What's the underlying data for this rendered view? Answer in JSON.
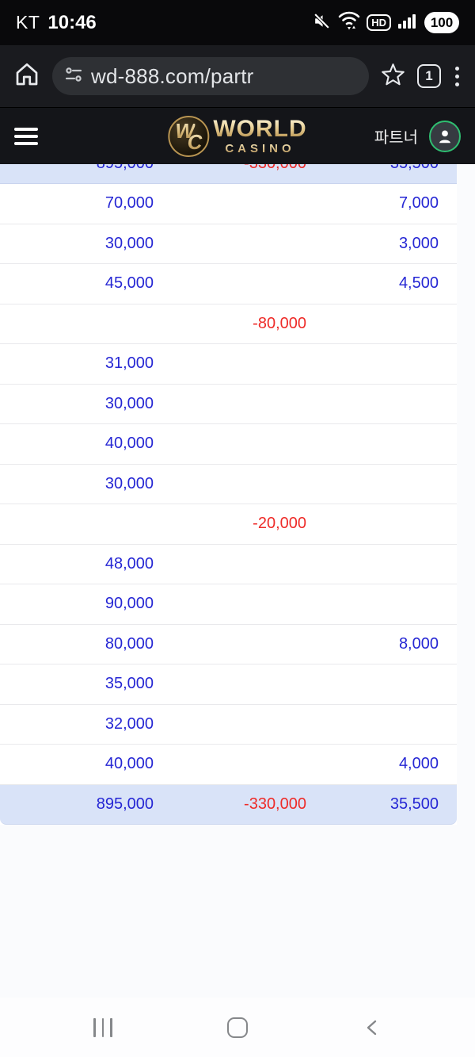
{
  "status_bar": {
    "carrier": "KT",
    "time": "10:46",
    "battery_level": "100",
    "icons": [
      "mute-icon",
      "wifi-icon",
      "hd-badge",
      "signal-icon",
      "battery-pill"
    ]
  },
  "browser": {
    "url": "wd-888.com/partr",
    "tab_count": "1",
    "icons": [
      "home-icon",
      "site-settings-icon",
      "star-icon",
      "tab-switcher",
      "kebab-menu-icon"
    ]
  },
  "header": {
    "logo_monogram_w": "W",
    "logo_monogram_c": "C",
    "logo_main": "WORLD",
    "logo_sub": "CASINO",
    "partner_label": "파트너",
    "icons": [
      "menu-icon",
      "avatar-person-icon"
    ]
  },
  "table": {
    "top_row": {
      "c1": "895,000",
      "c2": "-330,000",
      "c3": "35,500"
    },
    "rows": [
      {
        "c1": "70,000",
        "c3": "7,000"
      },
      {
        "c1": "30,000",
        "c3": "3,000"
      },
      {
        "c1": "45,000",
        "c3": "4,500"
      },
      {
        "c2": "-80,000"
      },
      {
        "c1": "31,000"
      },
      {
        "c1": "30,000"
      },
      {
        "c1": "40,000"
      },
      {
        "c1": "30,000"
      },
      {
        "c2": "-20,000"
      },
      {
        "c1": "48,000"
      },
      {
        "c1": "90,000"
      },
      {
        "c1": "80,000",
        "c3": "8,000"
      },
      {
        "c1": "35,000"
      },
      {
        "c1": "32,000"
      },
      {
        "c1": "40,000",
        "c3": "4,000"
      }
    ],
    "total_row": {
      "c1": "895,000",
      "c2": "-330,000",
      "c3": "35,500"
    },
    "colors": {
      "positive_text": "#2526d4",
      "negative_text": "#ee2b28",
      "highlight_bg": "#d9e3f8"
    }
  },
  "nav_bar": {
    "icons": [
      "recents-icon",
      "home-icon",
      "back-icon"
    ]
  }
}
